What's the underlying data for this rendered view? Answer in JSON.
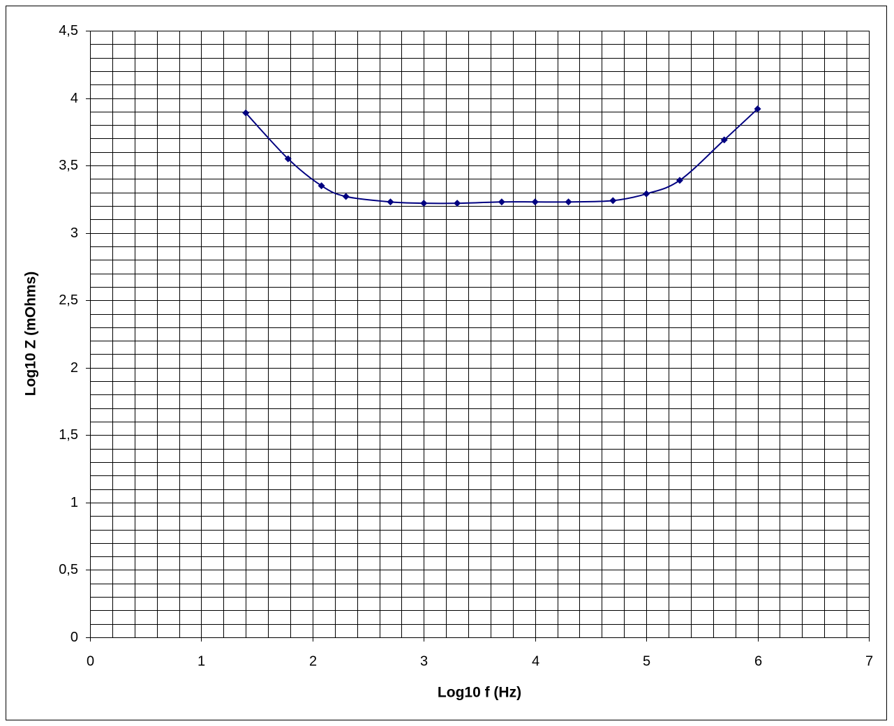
{
  "chart_data": {
    "type": "scatter",
    "x_label": "Log10 f (Hz)",
    "y_label": "Log10 Z (mOhms)",
    "xlim": [
      0,
      7
    ],
    "ylim": [
      0,
      4.5
    ],
    "xticks": [
      0,
      1,
      2,
      3,
      4,
      5,
      6,
      7
    ],
    "yticks": [
      0,
      {
        "value": 0.5,
        "label": "0,5"
      },
      1,
      {
        "value": 1.5,
        "label": "1,5"
      },
      2,
      {
        "value": 2.5,
        "label": "2,5"
      },
      3,
      {
        "value": 3.5,
        "label": "3,5"
      },
      4,
      {
        "value": 4.5,
        "label": "4,5"
      }
    ],
    "xgrid": [
      0,
      0.2,
      0.4,
      0.6,
      0.8,
      1,
      1.2,
      1.4,
      1.6,
      1.8,
      2,
      2.2,
      2.4,
      2.6,
      2.8,
      3,
      3.2,
      3.4,
      3.6,
      3.8,
      4,
      4.2,
      4.4,
      4.6,
      4.8,
      5,
      5.2,
      5.4,
      5.6,
      5.8,
      6,
      6.2,
      6.4,
      6.6,
      6.8,
      7
    ],
    "ygrid": [
      0,
      0.1,
      0.2,
      0.3,
      0.4,
      0.5,
      0.6,
      0.7,
      0.8,
      0.9,
      1,
      1.1,
      1.2,
      1.3,
      1.4,
      1.5,
      1.6,
      1.7,
      1.8,
      1.9,
      2,
      2.1,
      2.2,
      2.3,
      2.4,
      2.5,
      2.6,
      2.7,
      2.8,
      2.9,
      3,
      3.1,
      3.2,
      3.3,
      3.4,
      3.5,
      3.6,
      3.7,
      3.8,
      3.9,
      4,
      4.1,
      4.2,
      4.3,
      4.4,
      4.5
    ],
    "grid": true,
    "series": [
      {
        "color": "#000080",
        "x": [
          1.4,
          1.78,
          2.08,
          2.3,
          2.7,
          3.0,
          3.3,
          3.7,
          4.0,
          4.3,
          4.7,
          5.0,
          5.3,
          5.7,
          6.0
        ],
        "values": [
          3.89,
          3.55,
          3.35,
          3.27,
          3.23,
          3.22,
          3.22,
          3.23,
          3.23,
          3.23,
          3.24,
          3.29,
          3.39,
          3.69,
          3.92
        ]
      }
    ]
  }
}
